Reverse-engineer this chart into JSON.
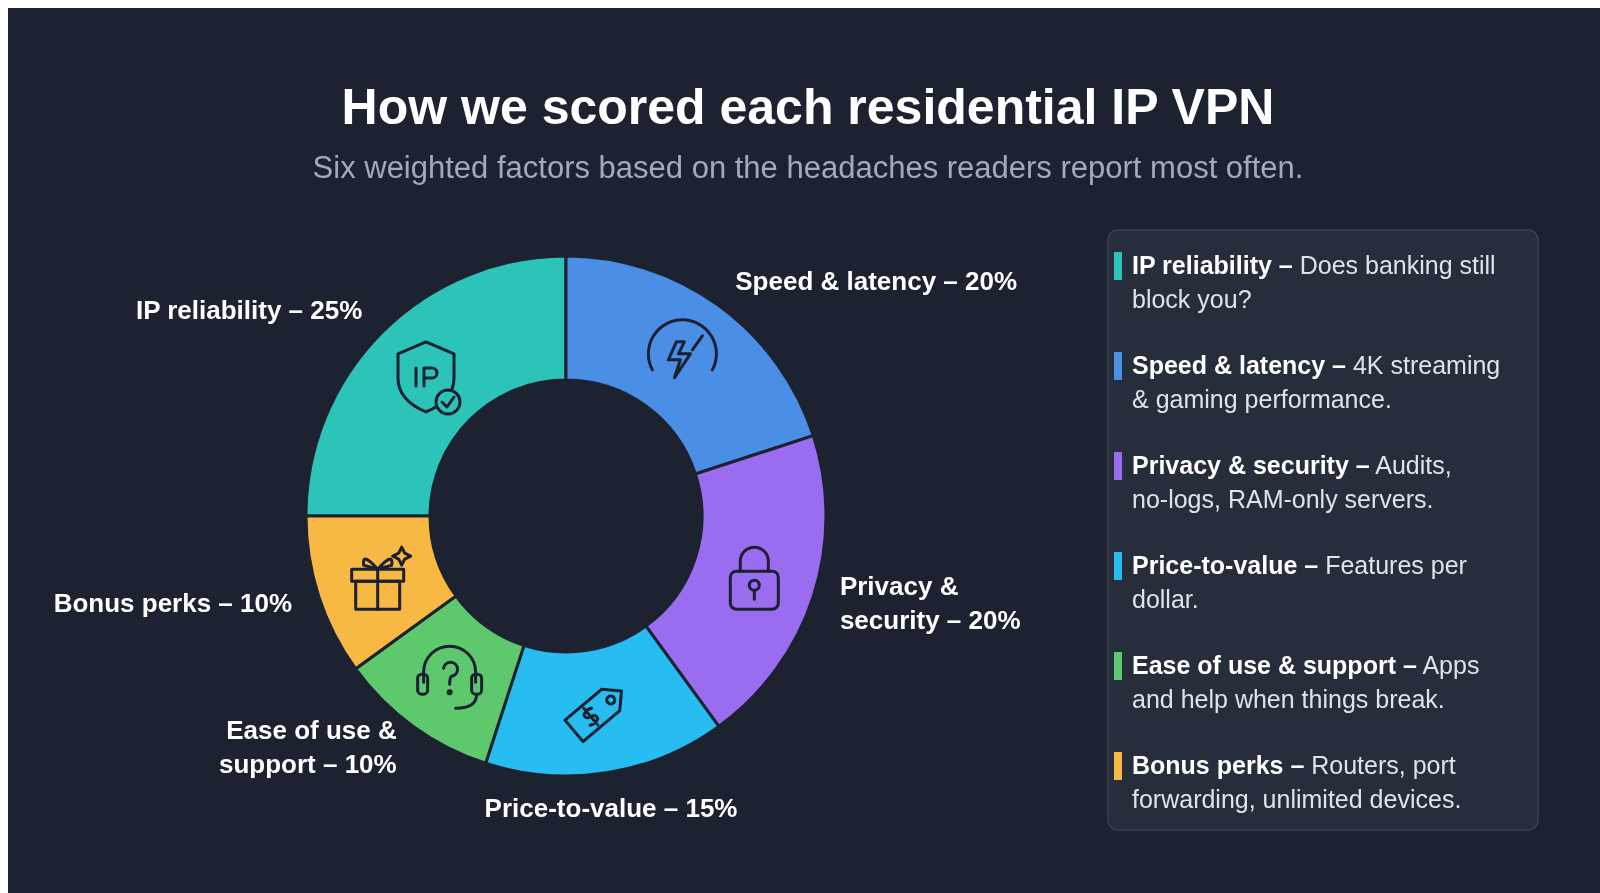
{
  "chart_data": {
    "type": "donut",
    "title": "How we scored each residential IP VPN",
    "subtitle": "Six weighted factors based on the headaches readers report most often.",
    "categories": [
      "IP reliability –",
      "Speed & latency –",
      "Privacy & security –",
      "Price-to-value –",
      "Ease of use & support –",
      "Bonus perks –"
    ],
    "values": [
      25,
      20,
      20,
      15,
      10,
      10
    ],
    "value_labels": [
      "25%",
      "20%",
      "20%",
      "15%",
      "10%",
      "10%"
    ],
    "colors": [
      "#2cc3b8",
      "#4a8ee6",
      "#9a6cf0",
      "#27bdf0",
      "#5ec86c",
      "#f8b844"
    ],
    "legend": "right",
    "annotations": [
      "Does banking still block you?",
      "4K streaming & gaming performance.",
      "Audits, no-logs, RAM-only servers.",
      "Features per dollar.",
      "Apps and help when things break.",
      "Routers, port forwarding, unlimited devices."
    ]
  }
}
